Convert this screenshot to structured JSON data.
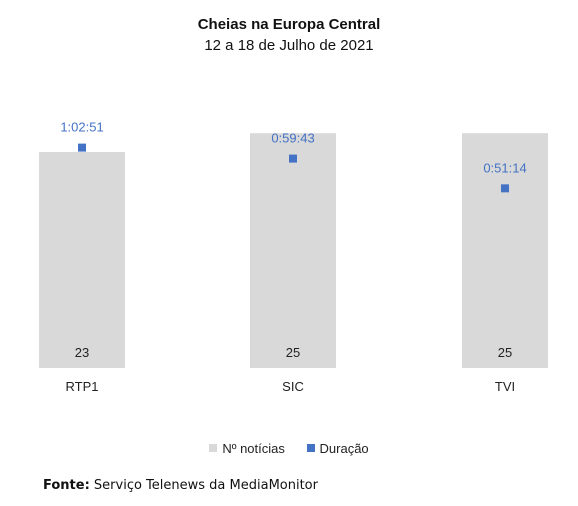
{
  "chart_data": {
    "type": "bar",
    "title": "Cheias na Europa Central",
    "subtitle": "12 a 18 de Julho de 2021",
    "categories": [
      "RTP1",
      "SIC",
      "TVI"
    ],
    "series": [
      {
        "name": "Nº notícias",
        "type": "bar",
        "values": [
          23,
          25,
          25
        ],
        "labels": [
          "23",
          "25",
          "25"
        ],
        "color": "#d9d9d9"
      },
      {
        "name": "Duração",
        "type": "scatter",
        "values_seconds": [
          3771,
          3583,
          3074
        ],
        "labels": [
          "1:02:51",
          "0:59:43",
          "0:51:14"
        ],
        "color": "#4472c4"
      }
    ],
    "y_bar_range": [
      0,
      28
    ],
    "y_duration_range_seconds": [
      0,
      4500
    ],
    "grid": false,
    "legend_position": "bottom"
  },
  "source": {
    "label": "Fonte:",
    "text": "Serviço Telenews da MediaMonitor"
  }
}
